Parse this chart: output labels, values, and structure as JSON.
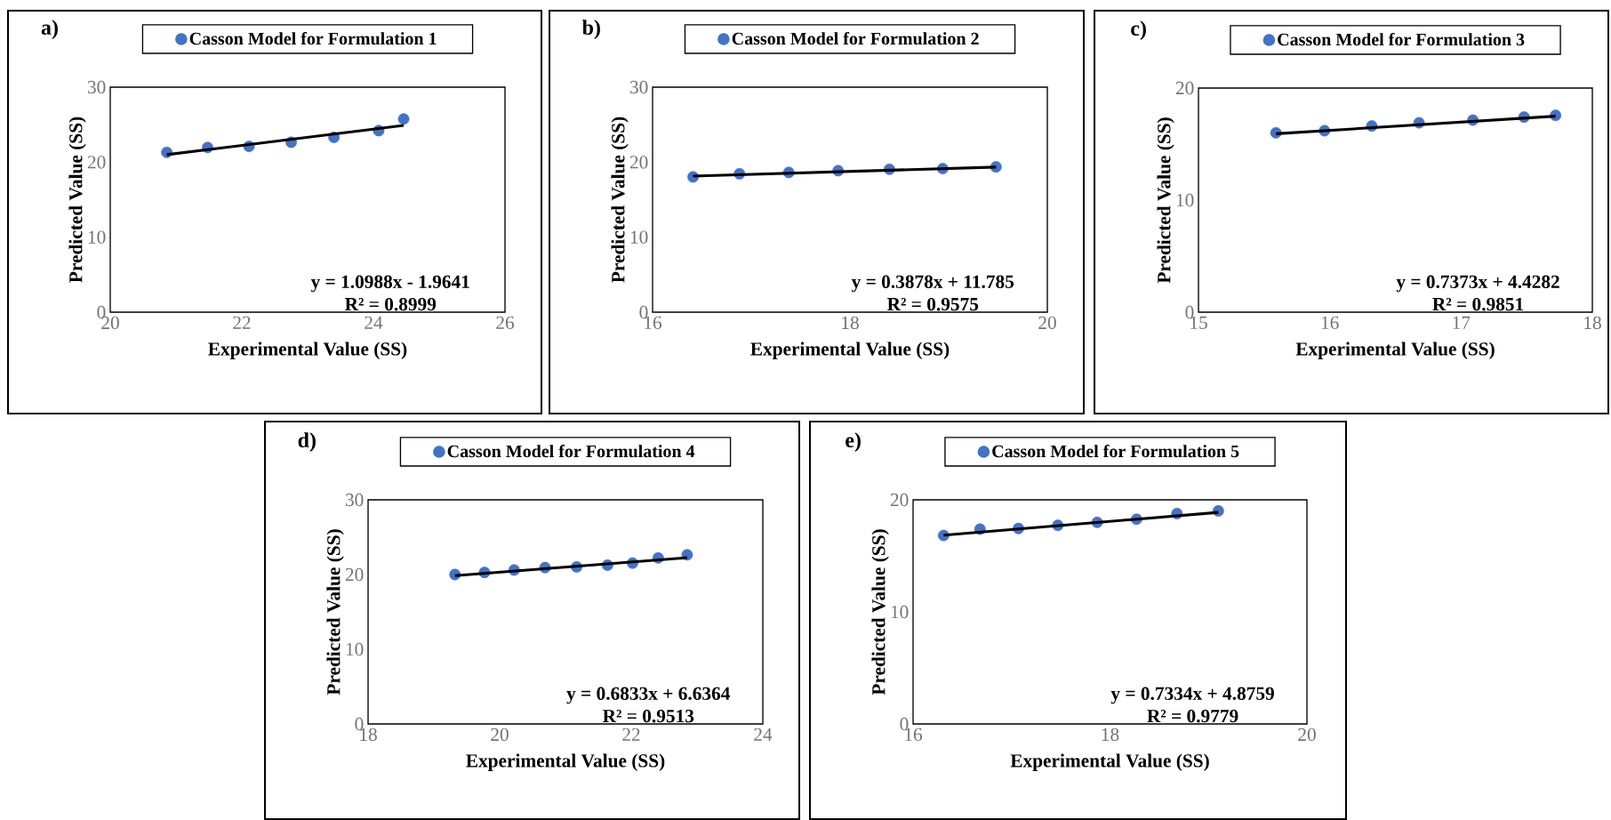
{
  "chart_data": [
    {
      "type": "scatter",
      "title": "a)",
      "xlabel": "Experimental Value (SS)",
      "ylabel": "Predicted Value (SS)",
      "xlim": [
        20,
        26
      ],
      "ylim": [
        0,
        30
      ],
      "xticks": [
        20,
        22,
        24,
        26
      ],
      "yticks": [
        0,
        10,
        20,
        30
      ],
      "legend": "top",
      "annotations": [
        "y = 1.0988x - 1.9641",
        "R² = 0.8999"
      ],
      "series": [
        {
          "name": "Casson Model for Formulation 1",
          "color": "#4472c4",
          "marker": "circle",
          "x": [
            20.86,
            21.48,
            22.11,
            22.75,
            23.4,
            24.08,
            24.46
          ],
          "values": [
            21.3,
            21.96,
            22.1,
            22.65,
            23.3,
            24.2,
            25.75
          ]
        },
        {
          "type": "line",
          "color": "#000000",
          "line_style": "solid",
          "marker": "none",
          "x": [
            20.86,
            24.46
          ],
          "values": [
            21.0,
            24.9
          ]
        }
      ]
    },
    {
      "type": "scatter",
      "title": "b)",
      "xlabel": "Experimental Value (SS)",
      "ylabel": "Predicted Value (SS)",
      "xlim": [
        16,
        20
      ],
      "ylim": [
        0,
        30
      ],
      "xticks": [
        16,
        18,
        20
      ],
      "yticks": [
        0,
        10,
        20,
        30
      ],
      "legend": "top",
      "annotations": [
        "y = 0.3878x + 11.785",
        "R² = 0.9575"
      ],
      "series": [
        {
          "name": "Casson Model for Formulation 2",
          "color": "#4472c4",
          "marker": "circle",
          "x": [
            16.41,
            16.88,
            17.38,
            17.88,
            18.4,
            18.94,
            19.48
          ],
          "values": [
            18.03,
            18.45,
            18.63,
            18.86,
            19.05,
            19.14,
            19.37
          ]
        },
        {
          "type": "line",
          "color": "#000000",
          "line_style": "solid",
          "marker": "none",
          "x": [
            16.41,
            19.48
          ],
          "values": [
            18.15,
            19.34
          ]
        }
      ]
    },
    {
      "type": "scatter",
      "title": "c)",
      "xlabel": "Experimental Value (SS)",
      "ylabel": "Predicted Value (SS)",
      "xlim": [
        15,
        18
      ],
      "ylim": [
        0,
        20
      ],
      "xticks": [
        15,
        16,
        17,
        18
      ],
      "yticks": [
        0,
        10,
        20
      ],
      "legend": "top",
      "annotations": [
        "y = 0.7373x + 4.4282",
        "R² = 0.9851"
      ],
      "series": [
        {
          "name": "Casson Model for Formulation 3",
          "color": "#4472c4",
          "marker": "circle",
          "x": [
            15.59,
            15.96,
            16.32,
            16.68,
            17.09,
            17.48,
            17.72
          ],
          "values": [
            16.01,
            16.19,
            16.61,
            16.9,
            17.14,
            17.41,
            17.56
          ]
        },
        {
          "type": "line",
          "color": "#000000",
          "line_style": "solid",
          "marker": "none",
          "x": [
            15.59,
            17.72
          ],
          "values": [
            15.92,
            17.49
          ]
        }
      ]
    },
    {
      "type": "scatter",
      "title": "d)",
      "xlabel": "Experimental Value (SS)",
      "ylabel": "Predicted Value (SS)",
      "xlim": [
        18,
        24
      ],
      "ylim": [
        0,
        30
      ],
      "xticks": [
        18,
        20,
        22,
        24
      ],
      "yticks": [
        0,
        10,
        20,
        30
      ],
      "legend": "top",
      "annotations": [
        "y = 0.6833x + 6.6364",
        "R² = 0.9513"
      ],
      "series": [
        {
          "name": "Casson Model for Formulation 4",
          "color": "#4472c4",
          "marker": "circle",
          "x": [
            19.32,
            19.77,
            20.22,
            20.69,
            21.17,
            21.64,
            22.02,
            22.41,
            22.85
          ],
          "values": [
            20.0,
            20.28,
            20.6,
            20.93,
            21.02,
            21.25,
            21.53,
            22.22,
            22.64
          ]
        },
        {
          "type": "line",
          "color": "#000000",
          "line_style": "solid",
          "marker": "none",
          "x": [
            19.32,
            22.85
          ],
          "values": [
            19.84,
            22.25
          ]
        }
      ]
    },
    {
      "type": "scatter",
      "title": "e)",
      "xlabel": "Experimental Value (SS)",
      "ylabel": "Predicted Value (SS)",
      "xlim": [
        16,
        20
      ],
      "ylim": [
        0,
        20
      ],
      "xticks": [
        16,
        18,
        20
      ],
      "yticks": [
        0,
        10,
        20
      ],
      "legend": "top",
      "annotations": [
        "y = 0.7334x + 4.8759",
        "R² = 0.9779"
      ],
      "series": [
        {
          "name": "Casson Model for Formulation 5",
          "color": "#4472c4",
          "marker": "circle",
          "x": [
            16.31,
            16.68,
            17.07,
            17.47,
            17.87,
            18.27,
            18.68,
            19.1
          ],
          "values": [
            16.82,
            17.38,
            17.44,
            17.72,
            17.99,
            18.27,
            18.77,
            19.01
          ]
        },
        {
          "type": "line",
          "color": "#000000",
          "line_style": "solid",
          "marker": "none",
          "x": [
            16.31,
            19.1
          ],
          "values": [
            16.84,
            18.88
          ]
        }
      ]
    }
  ]
}
